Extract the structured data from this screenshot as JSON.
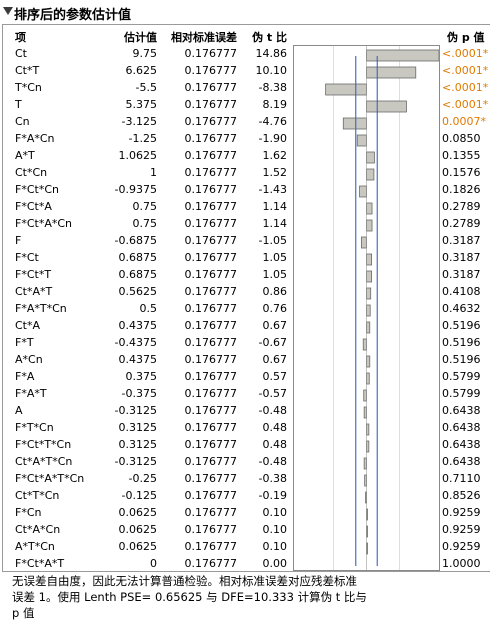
{
  "title": "排序后的参数估计值",
  "headers": {
    "term": "项",
    "estimate": "估计值",
    "std_err": "相对标准误差",
    "pseudo_t": "伪 t 比",
    "pseudo_p": "伪 p 值"
  },
  "rows": [
    {
      "term": "Ct",
      "estimate": "9.75",
      "std_err": "0.176777",
      "t": "14.86",
      "t_value": 14.86,
      "p": "<.0001*",
      "sig": true
    },
    {
      "term": "Ct*T",
      "estimate": "6.625",
      "std_err": "0.176777",
      "t": "10.10",
      "t_value": 10.1,
      "p": "<.0001*",
      "sig": true
    },
    {
      "term": "T*Cn",
      "estimate": "-5.5",
      "std_err": "0.176777",
      "t": "-8.38",
      "t_value": -8.38,
      "p": "<.0001*",
      "sig": true
    },
    {
      "term": "T",
      "estimate": "5.375",
      "std_err": "0.176777",
      "t": "8.19",
      "t_value": 8.19,
      "p": "<.0001*",
      "sig": true
    },
    {
      "term": "Cn",
      "estimate": "-3.125",
      "std_err": "0.176777",
      "t": "-4.76",
      "t_value": -4.76,
      "p": "0.0007*",
      "sig": true
    },
    {
      "term": "F*A*Cn",
      "estimate": "-1.25",
      "std_err": "0.176777",
      "t": "-1.90",
      "t_value": -1.9,
      "p": "0.0850",
      "sig": false
    },
    {
      "term": "A*T",
      "estimate": "1.0625",
      "std_err": "0.176777",
      "t": "1.62",
      "t_value": 1.62,
      "p": "0.1355",
      "sig": false
    },
    {
      "term": "Ct*Cn",
      "estimate": "1",
      "std_err": "0.176777",
      "t": "1.52",
      "t_value": 1.52,
      "p": "0.1576",
      "sig": false
    },
    {
      "term": "F*Ct*Cn",
      "estimate": "-0.9375",
      "std_err": "0.176777",
      "t": "-1.43",
      "t_value": -1.43,
      "p": "0.1826",
      "sig": false
    },
    {
      "term": "F*Ct*A",
      "estimate": "0.75",
      "std_err": "0.176777",
      "t": "1.14",
      "t_value": 1.14,
      "p": "0.2789",
      "sig": false
    },
    {
      "term": "F*Ct*A*Cn",
      "estimate": "0.75",
      "std_err": "0.176777",
      "t": "1.14",
      "t_value": 1.14,
      "p": "0.2789",
      "sig": false
    },
    {
      "term": "F",
      "estimate": "-0.6875",
      "std_err": "0.176777",
      "t": "-1.05",
      "t_value": -1.05,
      "p": "0.3187",
      "sig": false
    },
    {
      "term": "F*Ct",
      "estimate": "0.6875",
      "std_err": "0.176777",
      "t": "1.05",
      "t_value": 1.05,
      "p": "0.3187",
      "sig": false
    },
    {
      "term": "F*Ct*T",
      "estimate": "0.6875",
      "std_err": "0.176777",
      "t": "1.05",
      "t_value": 1.05,
      "p": "0.3187",
      "sig": false
    },
    {
      "term": "Ct*A*T",
      "estimate": "0.5625",
      "std_err": "0.176777",
      "t": "0.86",
      "t_value": 0.86,
      "p": "0.4108",
      "sig": false
    },
    {
      "term": "F*A*T*Cn",
      "estimate": "0.5",
      "std_err": "0.176777",
      "t": "0.76",
      "t_value": 0.76,
      "p": "0.4632",
      "sig": false
    },
    {
      "term": "Ct*A",
      "estimate": "0.4375",
      "std_err": "0.176777",
      "t": "0.67",
      "t_value": 0.67,
      "p": "0.5196",
      "sig": false
    },
    {
      "term": "F*T",
      "estimate": "-0.4375",
      "std_err": "0.176777",
      "t": "-0.67",
      "t_value": -0.67,
      "p": "0.5196",
      "sig": false
    },
    {
      "term": "A*Cn",
      "estimate": "0.4375",
      "std_err": "0.176777",
      "t": "0.67",
      "t_value": 0.67,
      "p": "0.5196",
      "sig": false
    },
    {
      "term": "F*A",
      "estimate": "0.375",
      "std_err": "0.176777",
      "t": "0.57",
      "t_value": 0.57,
      "p": "0.5799",
      "sig": false
    },
    {
      "term": "F*A*T",
      "estimate": "-0.375",
      "std_err": "0.176777",
      "t": "-0.57",
      "t_value": -0.57,
      "p": "0.5799",
      "sig": false
    },
    {
      "term": "A",
      "estimate": "-0.3125",
      "std_err": "0.176777",
      "t": "-0.48",
      "t_value": -0.48,
      "p": "0.6438",
      "sig": false
    },
    {
      "term": "F*T*Cn",
      "estimate": "0.3125",
      "std_err": "0.176777",
      "t": "0.48",
      "t_value": 0.48,
      "p": "0.6438",
      "sig": false
    },
    {
      "term": "F*Ct*T*Cn",
      "estimate": "0.3125",
      "std_err": "0.176777",
      "t": "0.48",
      "t_value": 0.48,
      "p": "0.6438",
      "sig": false
    },
    {
      "term": "Ct*A*T*Cn",
      "estimate": "-0.3125",
      "std_err": "0.176777",
      "t": "-0.48",
      "t_value": -0.48,
      "p": "0.6438",
      "sig": false
    },
    {
      "term": "F*Ct*A*T*Cn",
      "estimate": "-0.25",
      "std_err": "0.176777",
      "t": "-0.38",
      "t_value": -0.38,
      "p": "0.7110",
      "sig": false
    },
    {
      "term": "Ct*T*Cn",
      "estimate": "-0.125",
      "std_err": "0.176777",
      "t": "-0.19",
      "t_value": -0.19,
      "p": "0.8526",
      "sig": false
    },
    {
      "term": "F*Cn",
      "estimate": "0.0625",
      "std_err": "0.176777",
      "t": "0.10",
      "t_value": 0.1,
      "p": "0.9259",
      "sig": false
    },
    {
      "term": "Ct*A*Cn",
      "estimate": "0.0625",
      "std_err": "0.176777",
      "t": "0.10",
      "t_value": 0.1,
      "p": "0.9259",
      "sig": false
    },
    {
      "term": "A*T*Cn",
      "estimate": "0.0625",
      "std_err": "0.176777",
      "t": "0.10",
      "t_value": 0.1,
      "p": "0.9259",
      "sig": false
    },
    {
      "term": "F*Ct*A*T",
      "estimate": "0",
      "std_err": "0.176777",
      "t": "0.00",
      "t_value": 0.0,
      "p": "1.0000",
      "sig": false
    }
  ],
  "footnote": [
    "无误差自由度，因此无法计算普通检验。相对标准误差对应残差标准",
    "误差 1。使用 Lenth PSE= 0.65625 与 DFE=10.333 计算伪 t 比与",
    "p 值"
  ],
  "colors": {
    "bar_fill": "#c8c8c0",
    "bar_stroke": "#6a6a6a",
    "ref_line": "#3b64b5",
    "significant_p": "#e07a00",
    "grid_line": "#c8c8c8"
  },
  "bar_plot": {
    "x_range": [
      -14.86,
      14.86
    ],
    "ref_lines": [
      -2.2,
      2.2
    ]
  }
}
